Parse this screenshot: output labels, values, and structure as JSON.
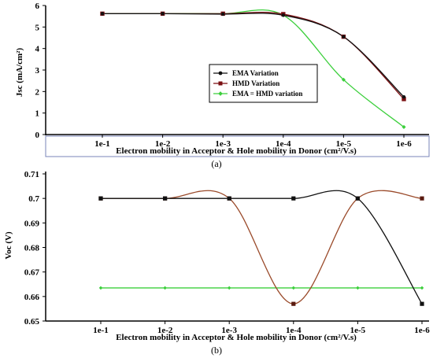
{
  "colors": {
    "ema": "#111111",
    "hmd": "#7a0f12",
    "equal": "#3ccf3c",
    "hmd_b": "#9a4a2a",
    "box": "#7a86b8"
  },
  "chart_data": [
    {
      "type": "line",
      "caption": "(a)",
      "xlabel": "Electron mobility in Acceptor & Hole mobility in Donor (cm²/V.s)",
      "ylabel": "Jsc (mA/cm²)",
      "categories": [
        "1e-1",
        "1e-2",
        "1e-3",
        "1e-4",
        "1e-5",
        "1e-6"
      ],
      "ylim": [
        0,
        6
      ],
      "yticks": [
        "0",
        "1",
        "2",
        "3",
        "4",
        "5",
        "6"
      ],
      "legend_position": "right",
      "series": [
        {
          "name": "EMA Variation",
          "values": [
            5.62,
            5.62,
            5.6,
            5.55,
            4.55,
            1.75
          ]
        },
        {
          "name": "HMD Variation",
          "values": [
            5.62,
            5.62,
            5.62,
            5.6,
            4.55,
            1.65
          ]
        },
        {
          "name": "EMA = HMD variation",
          "values": [
            5.62,
            5.62,
            5.62,
            5.55,
            2.55,
            0.35
          ]
        }
      ]
    },
    {
      "type": "line",
      "caption": "(b)",
      "xlabel": "Electron mobility in Acceptor & Hole mobility in Donor (cm²/V.s)",
      "ylabel": "Voc (V)",
      "categories": [
        "1e-1",
        "1e-2",
        "1e-3",
        "1e-4",
        "1e-5",
        "1e-6"
      ],
      "ylim": [
        0.65,
        0.71
      ],
      "yticks": [
        "0.65",
        "0.66",
        "0.67",
        "0.68",
        "0.69",
        "0.7",
        "0.71"
      ],
      "series": [
        {
          "values": [
            0.7,
            0.7,
            0.7,
            0.7,
            0.7,
            0.657
          ]
        },
        {
          "values": [
            0.7,
            0.7,
            0.7,
            0.657,
            0.7,
            0.7
          ]
        },
        {
          "values": [
            0.6635,
            0.6635,
            0.6635,
            0.6635,
            0.6635,
            0.6635
          ]
        }
      ]
    }
  ]
}
